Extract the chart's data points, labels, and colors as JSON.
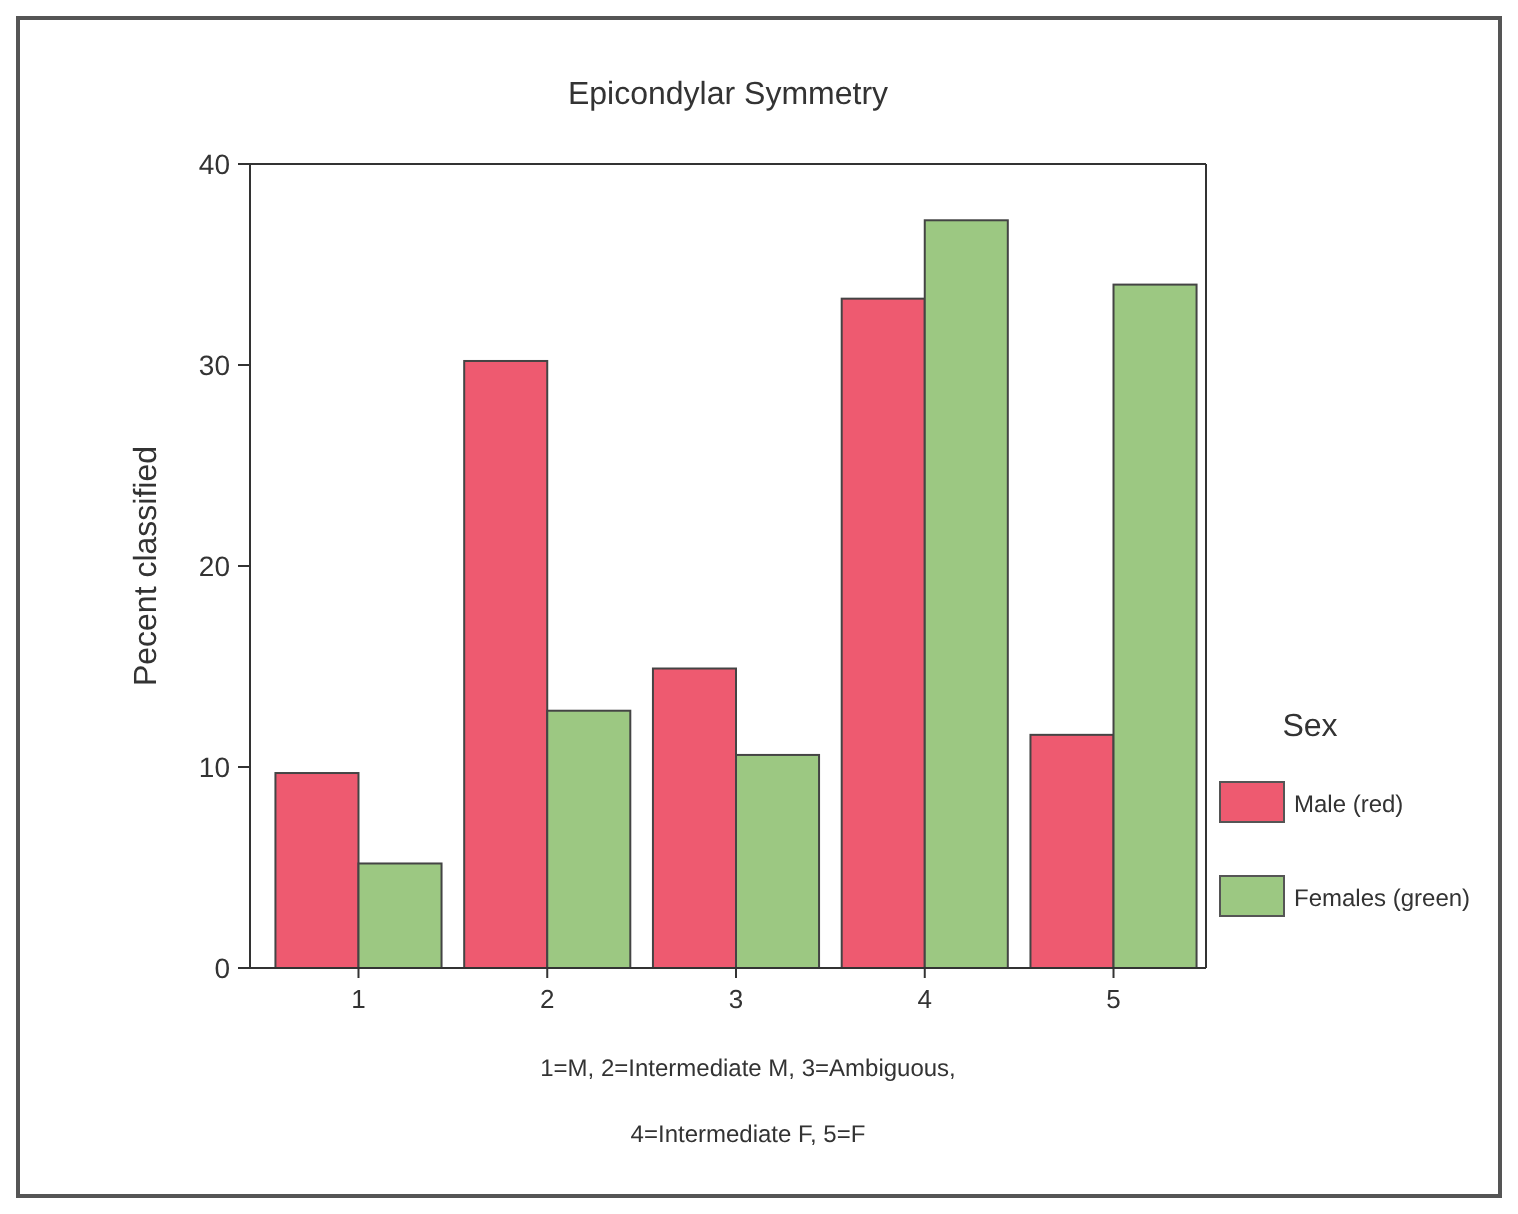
{
  "chart_data": {
    "type": "bar",
    "title": "Epicondylar Symmetry",
    "ylabel": "Pecent classified",
    "legend_title": "Sex",
    "categories": [
      "1",
      "2",
      "3",
      "4",
      "5"
    ],
    "series": [
      {
        "name": "Male (red)",
        "color": "#ee5a70",
        "values": [
          9.7,
          30.2,
          14.9,
          33.3,
          11.6
        ]
      },
      {
        "name": "Females (green)",
        "color": "#9cc882",
        "values": [
          5.2,
          12.8,
          10.6,
          37.2,
          34.0
        ]
      }
    ],
    "ylim": [
      0,
      40
    ],
    "yticks": [
      0,
      10,
      20,
      30,
      40
    ],
    "grid": false,
    "legend": "right",
    "annotations": [
      "1=M, 2=Intermediate M, 3=Ambiguous,",
      "4=Intermediate F, 5=F"
    ]
  }
}
